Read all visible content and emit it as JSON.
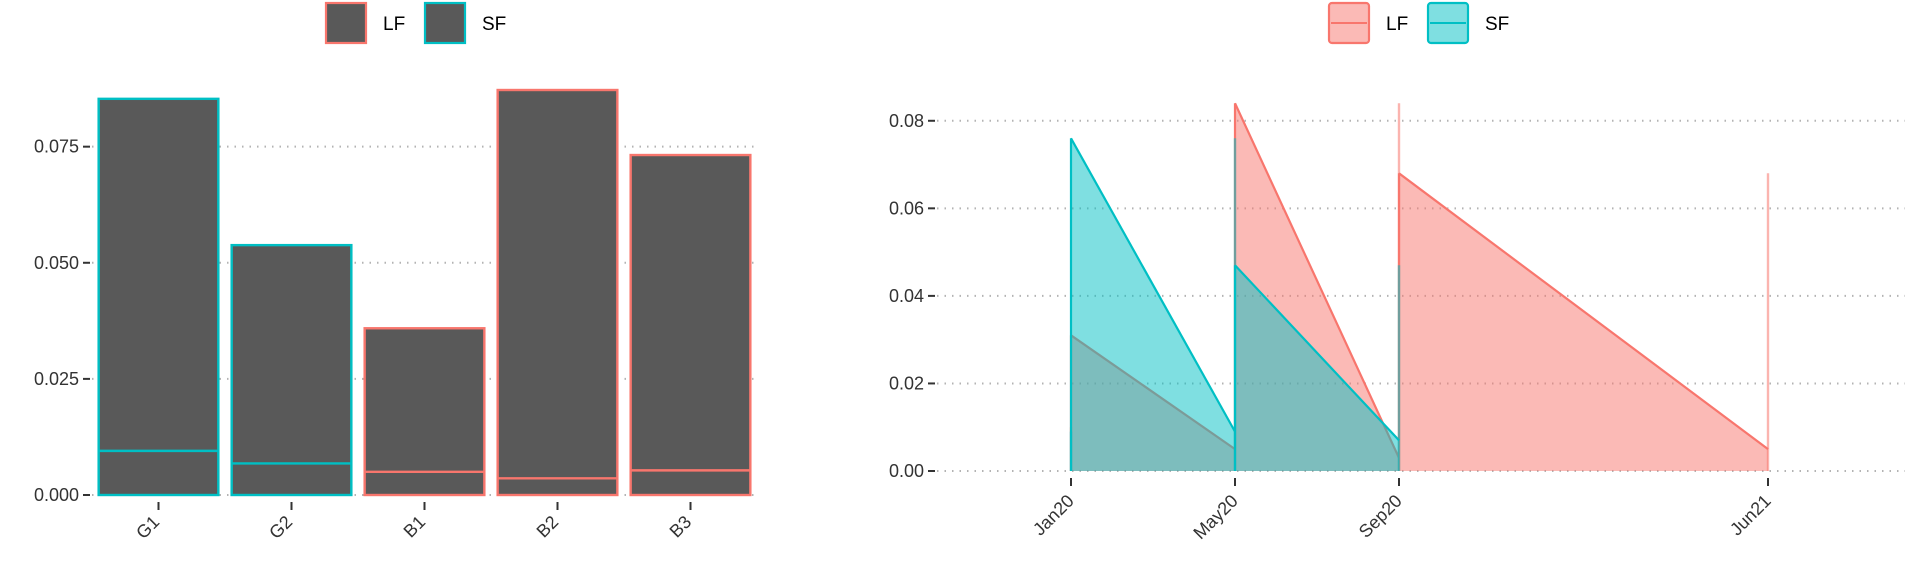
{
  "chart_data": [
    {
      "type": "bar",
      "title": "",
      "xlabel": "",
      "ylabel": "",
      "categories": [
        "G1",
        "G2",
        "B1",
        "B2",
        "B3"
      ],
      "values": [
        0.0853,
        0.0538,
        0.0359,
        0.0872,
        0.0732
      ],
      "inner_values": [
        0.0095,
        0.0068,
        0.005,
        0.0036,
        0.0053
      ],
      "group": [
        "SF",
        "SF",
        "LF",
        "LF",
        "LF"
      ],
      "fill_color": "#595959",
      "ylim": [
        0,
        0.09
      ],
      "yticks": [
        0,
        0.025,
        0.05,
        0.075
      ],
      "ytick_labels": [
        "0.000",
        "0.025",
        "0.050",
        "0.075"
      ],
      "legend": {
        "position": "top",
        "entries": [
          {
            "name": "LF",
            "color": "#F8766D"
          },
          {
            "name": "SF",
            "color": "#00BFC4"
          }
        ]
      },
      "grid": "horizontal-dotted"
    },
    {
      "type": "area",
      "title": "",
      "xlabel": "",
      "ylabel": "",
      "xticks": [
        "2020-01",
        "2020-05",
        "2020-09",
        "2021-06"
      ],
      "xtick_labels": [
        "Jan20",
        "May20",
        "Sep20",
        "Jun21"
      ],
      "ylim": [
        0,
        0.09
      ],
      "yticks": [
        0,
        0.02,
        0.04,
        0.06,
        0.08
      ],
      "ytick_labels": [
        "0.00",
        "0.02",
        "0.04",
        "0.06",
        "0.08"
      ],
      "series": [
        {
          "name": "LF",
          "color": "#F8766D",
          "segments": [
            [
              [
                "2020-01",
                0.031
              ],
              [
                "2020-05",
                0.005
              ]
            ],
            [
              [
                "2020-05",
                0.084
              ],
              [
                "2020-09",
                0.003
              ]
            ],
            [
              [
                "2020-09",
                0.068
              ],
              [
                "2021-06",
                0.005
              ]
            ]
          ],
          "spikes": [
            [
              "2020-01",
              0.01
            ],
            [
              "2020-09",
              0.084
            ],
            [
              "2021-06",
              0.068
            ]
          ]
        },
        {
          "name": "SF",
          "color": "#00BFC4",
          "segments": [
            [
              [
                "2020-01",
                0.076
              ],
              [
                "2020-05",
                0.009
              ]
            ],
            [
              [
                "2020-05",
                0.047
              ],
              [
                "2020-09",
                0.007
              ]
            ]
          ],
          "spikes": [
            [
              "2020-01",
              0.009
            ],
            [
              "2020-05",
              0.076
            ],
            [
              "2020-09",
              0.047
            ]
          ]
        }
      ],
      "legend": {
        "position": "top",
        "entries": [
          {
            "name": "LF",
            "color": "#F8766D"
          },
          {
            "name": "SF",
            "color": "#00BFC4"
          }
        ]
      },
      "grid": "horizontal-dotted"
    }
  ]
}
